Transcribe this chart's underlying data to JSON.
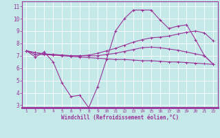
{
  "xlabel": "Windchill (Refroidissement éolien,°C)",
  "xlim": [
    0.5,
    22.5
  ],
  "ylim": [
    2.8,
    11.4
  ],
  "xticks": [
    1,
    2,
    3,
    4,
    5,
    6,
    7,
    8,
    9,
    10,
    11,
    12,
    13,
    14,
    15,
    16,
    17,
    18,
    19,
    20,
    21,
    22
  ],
  "yticks": [
    3,
    4,
    5,
    6,
    7,
    8,
    9,
    10,
    11
  ],
  "bg_color": "#c5e8e8",
  "line_color": "#993399",
  "grid_color": "#ffffff",
  "series_data": [
    7.4,
    6.9,
    7.3,
    6.5,
    4.8,
    3.7,
    3.8,
    2.8,
    4.5,
    6.7,
    9.0,
    10.0,
    10.7,
    10.7,
    10.7,
    9.9,
    9.2,
    9.4,
    9.5,
    8.3,
    7.0,
    6.3
  ],
  "series_line1": [
    7.4,
    7.25,
    7.15,
    7.1,
    7.05,
    7.0,
    7.0,
    7.05,
    7.2,
    7.4,
    7.6,
    7.85,
    8.1,
    8.3,
    8.45,
    8.5,
    8.6,
    8.75,
    8.9,
    9.0,
    8.85,
    8.2
  ],
  "series_line2": [
    7.4,
    7.25,
    7.15,
    7.1,
    7.05,
    7.0,
    7.0,
    7.0,
    7.0,
    7.1,
    7.2,
    7.35,
    7.5,
    7.65,
    7.7,
    7.65,
    7.55,
    7.45,
    7.3,
    7.15,
    7.0,
    6.3
  ],
  "series_line3": [
    7.4,
    7.1,
    7.1,
    7.05,
    7.0,
    6.95,
    6.9,
    6.85,
    6.8,
    6.75,
    6.7,
    6.7,
    6.65,
    6.6,
    6.6,
    6.55,
    6.5,
    6.5,
    6.45,
    6.4,
    6.35,
    6.3
  ]
}
